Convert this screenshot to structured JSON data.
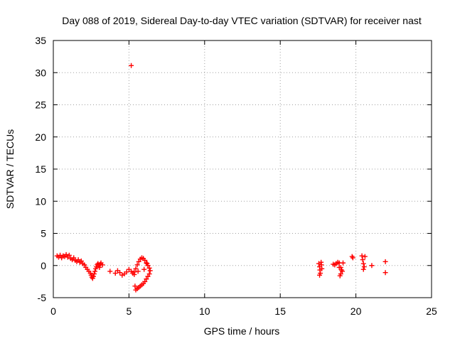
{
  "chart_data": {
    "type": "scatter",
    "title": "Day 088 of 2019, Sidereal Day-to-day VTEC variation (SDTVAR) for receiver nast",
    "xlabel": "GPS time / hours",
    "ylabel": "SDTVAR / TECUs",
    "xlim": [
      0,
      25
    ],
    "ylim": [
      -5,
      35
    ],
    "xticks": [
      0,
      5,
      10,
      15,
      20,
      25
    ],
    "yticks": [
      -5,
      0,
      5,
      10,
      15,
      20,
      25,
      30,
      35
    ],
    "xtick_labels": [
      "0",
      "5",
      "10",
      "15",
      "20",
      "25"
    ],
    "ytick_labels": [
      "-5",
      "0",
      "5",
      "10",
      "15",
      "20",
      "25",
      "30",
      "35"
    ],
    "grid": true,
    "marker": "+",
    "series": [
      {
        "name": "SDTVAR",
        "color": "#ff0000",
        "x": [
          0.25,
          0.35,
          0.45,
          0.55,
          0.65,
          0.75,
          0.85,
          0.95,
          1.05,
          1.15,
          1.25,
          1.35,
          1.45,
          1.55,
          1.65,
          1.75,
          1.85,
          1.95,
          2.05,
          2.15,
          2.25,
          2.35,
          2.45,
          2.5,
          2.55,
          2.6,
          2.65,
          2.7,
          2.75,
          2.8,
          2.85,
          2.9,
          2.95,
          3.0,
          3.05,
          3.1,
          3.15,
          3.25,
          3.75,
          4.1,
          4.25,
          4.4,
          4.55,
          4.7,
          4.85,
          5.0,
          5.15,
          5.25,
          5.35,
          5.45,
          5.55,
          5.65,
          5.75,
          5.85,
          5.95,
          6.05,
          6.15,
          6.25,
          6.35,
          6.4,
          6.35,
          6.25,
          6.15,
          6.05,
          5.95,
          5.85,
          5.75,
          5.65,
          5.55,
          5.45,
          5.4,
          5.35,
          6.0,
          6.2,
          5.6,
          5.15,
          17.55,
          17.6,
          17.62,
          17.65,
          17.7,
          17.72,
          17.75,
          17.6,
          18.5,
          18.6,
          18.7,
          18.8,
          18.9,
          19.0,
          19.1,
          19.0,
          18.95,
          19.05,
          19.15,
          18.9,
          19.75,
          19.8,
          20.4,
          20.45,
          20.5,
          20.55,
          20.6,
          20.5,
          21.05,
          21.95,
          21.95
        ],
        "y": [
          1.5,
          1.3,
          1.6,
          1.2,
          1.5,
          1.4,
          1.7,
          1.3,
          1.6,
          1.1,
          0.9,
          1.2,
          0.8,
          0.6,
          0.9,
          0.5,
          0.7,
          0.3,
          0.1,
          -0.3,
          -0.6,
          -0.9,
          -1.2,
          -1.5,
          -1.8,
          -2.0,
          -1.7,
          -1.3,
          -0.9,
          -0.5,
          -0.2,
          0.1,
          0.3,
          0.0,
          -0.3,
          0.2,
          0.4,
          0.1,
          -0.9,
          -1.2,
          -0.8,
          -1.1,
          -1.5,
          -1.3,
          -1.0,
          -0.6,
          -0.9,
          -1.2,
          -1.0,
          -0.5,
          0.1,
          0.6,
          1.0,
          1.2,
          1.1,
          0.8,
          0.4,
          0.0,
          -0.4,
          -0.8,
          -1.3,
          -1.7,
          -2.1,
          -2.5,
          -2.8,
          -3.0,
          -3.2,
          -3.4,
          -3.6,
          -3.8,
          -3.2,
          -1.4,
          -0.6,
          0.3,
          -0.9,
          31.1,
          0.3,
          -0.2,
          -0.7,
          -1.2,
          0.5,
          0.1,
          -0.5,
          -1.5,
          0.2,
          0.1,
          0.3,
          0.5,
          0.4,
          -0.3,
          -0.9,
          -1.3,
          -1.6,
          -0.7,
          0.4,
          -0.3,
          1.4,
          1.2,
          1.5,
          0.9,
          0.3,
          -0.2,
          1.4,
          -0.6,
          0.0,
          0.6,
          -1.1
        ]
      }
    ]
  }
}
